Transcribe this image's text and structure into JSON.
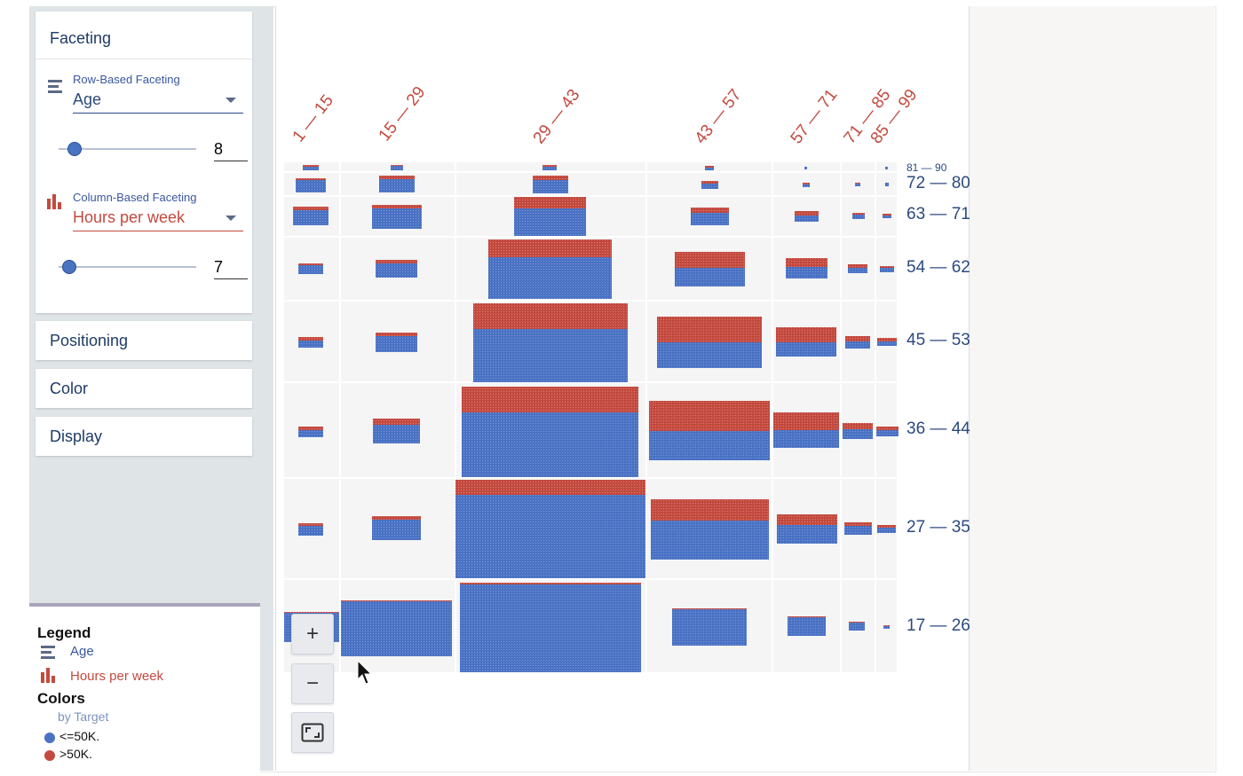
{
  "sidebar": {
    "faceting": {
      "title": "Faceting",
      "row": {
        "label": "Row-Based Faceting",
        "value": "Age",
        "slider_value": "8",
        "icon": "row-facet-icon"
      },
      "column": {
        "label": "Column-Based Faceting",
        "value": "Hours per week",
        "slider_value": "7",
        "icon": "column-facet-icon"
      }
    },
    "sections": [
      "Positioning",
      "Color",
      "Display"
    ]
  },
  "legend": {
    "title": "Legend",
    "row_label": "Age",
    "col_label": "Hours per week",
    "colors_title": "Colors",
    "by": "by Target",
    "low": "<=50K.",
    "high": ">50K."
  },
  "colors": {
    "blue": "#4a72c4",
    "red": "#c34a3f",
    "navy": "#2c4a7f"
  },
  "chart_data": {
    "type": "facet-dot-grid",
    "column_field": "Hours per week",
    "row_field": "Age",
    "column_labels": [
      "1 — 15",
      "15 — 29",
      "29 — 43",
      "43 — 57",
      "57 — 71",
      "71 — 85",
      "85 — 99"
    ],
    "row_labels": [
      "81 — 90",
      "72 — 80",
      "63 — 71",
      "54 — 62",
      "45 — 53",
      "36 — 44",
      "27 — 35",
      "17 — 26"
    ],
    "series": [
      "<=50K.",
      ">50K."
    ]
  },
  "zoom": {
    "in": "+",
    "out": "−"
  }
}
